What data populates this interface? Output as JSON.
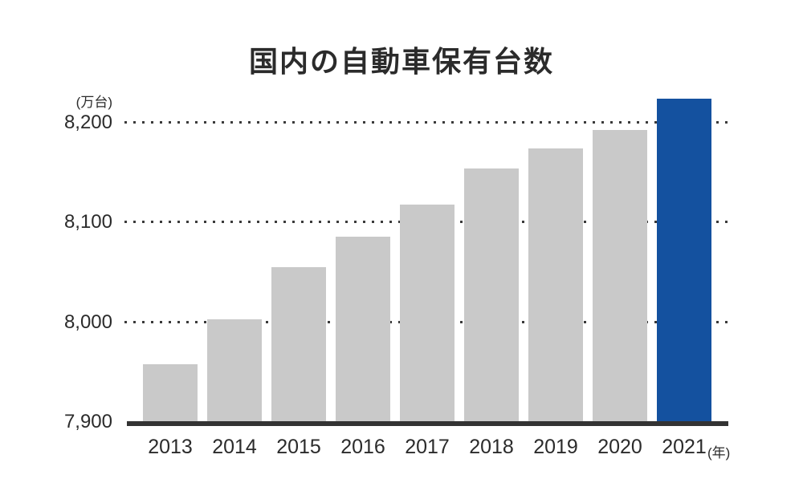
{
  "title": "国内の自動車保有台数",
  "y_axis": {
    "unit_label": "(万台)",
    "ticks": [
      {
        "label": "8,200",
        "value": 8200
      },
      {
        "label": "8,100",
        "value": 8100
      },
      {
        "label": "8,000",
        "value": 8000
      },
      {
        "label": "7,900",
        "value": 7900
      }
    ]
  },
  "x_axis": {
    "unit_label": "(年)"
  },
  "colors": {
    "bar_default": "#c9c9c9",
    "bar_highlight": "#14519f",
    "axis_line": "#333333",
    "grid_dots": "#3a3a3a",
    "text": "#2b2b2b"
  },
  "chart_data": {
    "type": "bar",
    "title": "国内の自動車保有台数",
    "unit": "万台",
    "xlabel": "年",
    "ylabel": "万台",
    "categories": [
      "2013",
      "2014",
      "2015",
      "2016",
      "2017",
      "2018",
      "2019",
      "2020",
      "2021"
    ],
    "values": [
      7958,
      8003,
      8055,
      8086,
      8118,
      8154,
      8174,
      8193,
      8224
    ],
    "ylim": [
      7900,
      8230
    ],
    "yticks": [
      7900,
      8000,
      8100,
      8200
    ],
    "gridlines": [
      8000,
      8100,
      8200
    ],
    "grid_style": "dotted-horizontal",
    "legend": "none",
    "highlight_index": 8,
    "highlight_category": "2021"
  }
}
